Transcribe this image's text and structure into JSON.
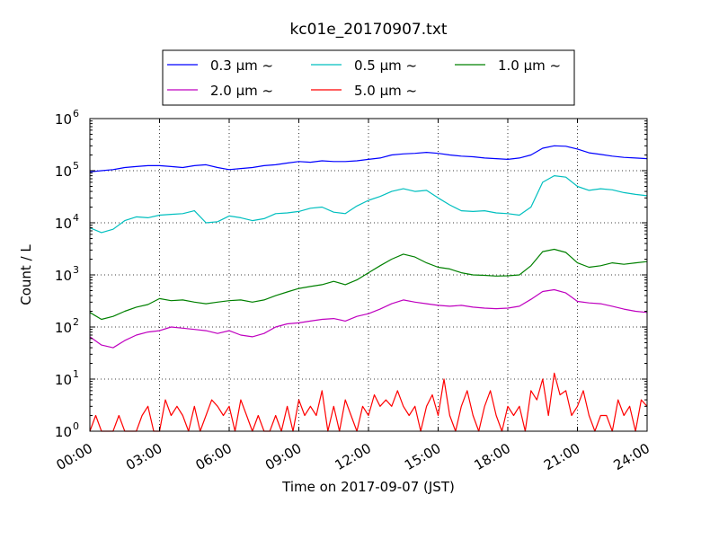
{
  "chart_data": {
    "type": "line",
    "title": "kc01e_20170907.txt",
    "xlabel": "Time on 2017-09-07 (JST)",
    "ylabel": "Count / L",
    "yscale": "log",
    "ylim": [
      1,
      1000000
    ],
    "xlim_hours": [
      0,
      24
    ],
    "grid": true,
    "legend_placement": "top-center",
    "x_tick_labels": [
      "00:00",
      "03:00",
      "06:00",
      "09:00",
      "12:00",
      "15:00",
      "18:00",
      "21:00",
      "24:00"
    ],
    "y_tick_base": "10",
    "y_tick_exponents": [
      "0",
      "1",
      "2",
      "3",
      "4",
      "5",
      "6"
    ],
    "series": [
      {
        "name": "0.3 μm ~",
        "color": "#0000ff",
        "points": [
          [
            0,
            95000
          ],
          [
            0.5,
            100000
          ],
          [
            1,
            105000
          ],
          [
            1.5,
            115000
          ],
          [
            2,
            120000
          ],
          [
            2.5,
            125000
          ],
          [
            3,
            125000
          ],
          [
            3.5,
            120000
          ],
          [
            4,
            115000
          ],
          [
            4.5,
            125000
          ],
          [
            5,
            130000
          ],
          [
            5.5,
            115000
          ],
          [
            6,
            105000
          ],
          [
            6.5,
            110000
          ],
          [
            7,
            115000
          ],
          [
            7.5,
            125000
          ],
          [
            8,
            130000
          ],
          [
            8.5,
            140000
          ],
          [
            9,
            150000
          ],
          [
            9.5,
            145000
          ],
          [
            10,
            155000
          ],
          [
            10.5,
            150000
          ],
          [
            11,
            150000
          ],
          [
            11.5,
            155000
          ],
          [
            12,
            165000
          ],
          [
            12.5,
            175000
          ],
          [
            13,
            200000
          ],
          [
            13.5,
            210000
          ],
          [
            14,
            215000
          ],
          [
            14.5,
            225000
          ],
          [
            15,
            215000
          ],
          [
            15.5,
            200000
          ],
          [
            16,
            190000
          ],
          [
            16.5,
            185000
          ],
          [
            17,
            175000
          ],
          [
            17.5,
            170000
          ],
          [
            18,
            165000
          ],
          [
            18.5,
            175000
          ],
          [
            19,
            200000
          ],
          [
            19.5,
            270000
          ],
          [
            20,
            300000
          ],
          [
            20.5,
            295000
          ],
          [
            21,
            260000
          ],
          [
            21.5,
            220000
          ],
          [
            22,
            205000
          ],
          [
            22.5,
            190000
          ],
          [
            23,
            180000
          ],
          [
            23.5,
            175000
          ],
          [
            24,
            170000
          ]
        ]
      },
      {
        "name": "0.5 μm ~",
        "color": "#00bfbf",
        "points": [
          [
            0,
            8000
          ],
          [
            0.5,
            6500
          ],
          [
            1,
            7500
          ],
          [
            1.5,
            11000
          ],
          [
            2,
            13000
          ],
          [
            2.5,
            12500
          ],
          [
            3,
            14000
          ],
          [
            3.5,
            14500
          ],
          [
            4,
            15000
          ],
          [
            4.5,
            17000
          ],
          [
            5,
            10000
          ],
          [
            5.5,
            10500
          ],
          [
            6,
            13500
          ],
          [
            6.5,
            12500
          ],
          [
            7,
            11000
          ],
          [
            7.5,
            12000
          ],
          [
            8,
            15000
          ],
          [
            8.5,
            15500
          ],
          [
            9,
            16500
          ],
          [
            9.5,
            19000
          ],
          [
            10,
            20000
          ],
          [
            10.5,
            16000
          ],
          [
            11,
            15000
          ],
          [
            11.5,
            21000
          ],
          [
            12,
            27000
          ],
          [
            12.5,
            32000
          ],
          [
            13,
            40000
          ],
          [
            13.5,
            45000
          ],
          [
            14,
            40000
          ],
          [
            14.5,
            42000
          ],
          [
            15,
            30000
          ],
          [
            15.5,
            22000
          ],
          [
            16,
            17000
          ],
          [
            16.5,
            16500
          ],
          [
            17,
            17000
          ],
          [
            17.5,
            15500
          ],
          [
            18,
            15000
          ],
          [
            18.5,
            14000
          ],
          [
            19,
            20000
          ],
          [
            19.5,
            60000
          ],
          [
            20,
            80000
          ],
          [
            20.5,
            75000
          ],
          [
            21,
            50000
          ],
          [
            21.5,
            42000
          ],
          [
            22,
            45000
          ],
          [
            22.5,
            43000
          ],
          [
            23,
            38000
          ],
          [
            23.5,
            35000
          ],
          [
            24,
            33000
          ]
        ]
      },
      {
        "name": "1.0 μm ~",
        "color": "#008000",
        "points": [
          [
            0,
            190
          ],
          [
            0.5,
            140
          ],
          [
            1,
            160
          ],
          [
            1.5,
            200
          ],
          [
            2,
            240
          ],
          [
            2.5,
            270
          ],
          [
            3,
            350
          ],
          [
            3.5,
            320
          ],
          [
            4,
            330
          ],
          [
            4.5,
            300
          ],
          [
            5,
            280
          ],
          [
            5.5,
            300
          ],
          [
            6,
            320
          ],
          [
            6.5,
            330
          ],
          [
            7,
            300
          ],
          [
            7.5,
            330
          ],
          [
            8,
            400
          ],
          [
            8.5,
            470
          ],
          [
            9,
            550
          ],
          [
            9.5,
            600
          ],
          [
            10,
            650
          ],
          [
            10.5,
            750
          ],
          [
            11,
            650
          ],
          [
            11.5,
            800
          ],
          [
            12,
            1100
          ],
          [
            12.5,
            1500
          ],
          [
            13,
            2000
          ],
          [
            13.5,
            2500
          ],
          [
            14,
            2200
          ],
          [
            14.5,
            1700
          ],
          [
            15,
            1400
          ],
          [
            15.5,
            1300
          ],
          [
            16,
            1100
          ],
          [
            16.5,
            1000
          ],
          [
            17,
            980
          ],
          [
            17.5,
            950
          ],
          [
            18,
            960
          ],
          [
            18.5,
            1000
          ],
          [
            19,
            1500
          ],
          [
            19.5,
            2800
          ],
          [
            20,
            3100
          ],
          [
            20.5,
            2700
          ],
          [
            21,
            1700
          ],
          [
            21.5,
            1400
          ],
          [
            22,
            1500
          ],
          [
            22.5,
            1700
          ],
          [
            23,
            1600
          ],
          [
            23.5,
            1700
          ],
          [
            24,
            1800
          ]
        ]
      },
      {
        "name": "2.0 μm ~",
        "color": "#bf00bf",
        "points": [
          [
            0,
            65
          ],
          [
            0.5,
            45
          ],
          [
            1,
            40
          ],
          [
            1.5,
            55
          ],
          [
            2,
            70
          ],
          [
            2.5,
            80
          ],
          [
            3,
            85
          ],
          [
            3.5,
            100
          ],
          [
            4,
            95
          ],
          [
            4.5,
            90
          ],
          [
            5,
            85
          ],
          [
            5.5,
            75
          ],
          [
            6,
            85
          ],
          [
            6.5,
            70
          ],
          [
            7,
            65
          ],
          [
            7.5,
            75
          ],
          [
            8,
            100
          ],
          [
            8.5,
            115
          ],
          [
            9,
            120
          ],
          [
            9.5,
            130
          ],
          [
            10,
            140
          ],
          [
            10.5,
            145
          ],
          [
            11,
            130
          ],
          [
            11.5,
            160
          ],
          [
            12,
            180
          ],
          [
            12.5,
            220
          ],
          [
            13,
            280
          ],
          [
            13.5,
            330
          ],
          [
            14,
            300
          ],
          [
            14.5,
            280
          ],
          [
            15,
            260
          ],
          [
            15.5,
            250
          ],
          [
            16,
            260
          ],
          [
            16.5,
            240
          ],
          [
            17,
            230
          ],
          [
            17.5,
            225
          ],
          [
            18,
            230
          ],
          [
            18.5,
            250
          ],
          [
            19,
            340
          ],
          [
            19.5,
            480
          ],
          [
            20,
            520
          ],
          [
            20.5,
            450
          ],
          [
            21,
            310
          ],
          [
            21.5,
            290
          ],
          [
            22,
            280
          ],
          [
            22.5,
            250
          ],
          [
            23,
            220
          ],
          [
            23.5,
            200
          ],
          [
            24,
            190
          ]
        ]
      },
      {
        "name": "5.0 μm ~",
        "color": "#ff0000",
        "points": [
          [
            0,
            1
          ],
          [
            0.25,
            2
          ],
          [
            0.5,
            1
          ],
          [
            1,
            1
          ],
          [
            1.25,
            2
          ],
          [
            1.5,
            1
          ],
          [
            2,
            1
          ],
          [
            2.25,
            2
          ],
          [
            2.5,
            3
          ],
          [
            2.75,
            1
          ],
          [
            3,
            1
          ],
          [
            3.25,
            4
          ],
          [
            3.5,
            2
          ],
          [
            3.75,
            3
          ],
          [
            4,
            2
          ],
          [
            4.25,
            1
          ],
          [
            4.5,
            3
          ],
          [
            4.75,
            1
          ],
          [
            5,
            2
          ],
          [
            5.25,
            4
          ],
          [
            5.5,
            3
          ],
          [
            5.75,
            2
          ],
          [
            6,
            3
          ],
          [
            6.25,
            1
          ],
          [
            6.5,
            4
          ],
          [
            6.75,
            2
          ],
          [
            7,
            1
          ],
          [
            7.25,
            2
          ],
          [
            7.5,
            1
          ],
          [
            7.75,
            1
          ],
          [
            8,
            2
          ],
          [
            8.25,
            1
          ],
          [
            8.5,
            3
          ],
          [
            8.75,
            1
          ],
          [
            9,
            4
          ],
          [
            9.25,
            2
          ],
          [
            9.5,
            3
          ],
          [
            9.75,
            2
          ],
          [
            10,
            6
          ],
          [
            10.25,
            1
          ],
          [
            10.5,
            3
          ],
          [
            10.75,
            1
          ],
          [
            11,
            4
          ],
          [
            11.25,
            2
          ],
          [
            11.5,
            1
          ],
          [
            11.75,
            3
          ],
          [
            12,
            2
          ],
          [
            12.25,
            5
          ],
          [
            12.5,
            3
          ],
          [
            12.75,
            4
          ],
          [
            13,
            3
          ],
          [
            13.25,
            6
          ],
          [
            13.5,
            3
          ],
          [
            13.75,
            2
          ],
          [
            14,
            3
          ],
          [
            14.25,
            1
          ],
          [
            14.5,
            3
          ],
          [
            14.75,
            5
          ],
          [
            15,
            2
          ],
          [
            15.25,
            10
          ],
          [
            15.5,
            2
          ],
          [
            15.75,
            1
          ],
          [
            16,
            3
          ],
          [
            16.25,
            6
          ],
          [
            16.5,
            2
          ],
          [
            16.75,
            1
          ],
          [
            17,
            3
          ],
          [
            17.25,
            6
          ],
          [
            17.5,
            2
          ],
          [
            17.75,
            1
          ],
          [
            18,
            3
          ],
          [
            18.25,
            2
          ],
          [
            18.5,
            3
          ],
          [
            18.75,
            1
          ],
          [
            19,
            6
          ],
          [
            19.25,
            4
          ],
          [
            19.5,
            10
          ],
          [
            19.75,
            2
          ],
          [
            20,
            13
          ],
          [
            20.25,
            5
          ],
          [
            20.5,
            6
          ],
          [
            20.75,
            2
          ],
          [
            21,
            3
          ],
          [
            21.25,
            6
          ],
          [
            21.5,
            2
          ],
          [
            21.75,
            1
          ],
          [
            22,
            2
          ],
          [
            22.25,
            2
          ],
          [
            22.5,
            1
          ],
          [
            22.75,
            4
          ],
          [
            23,
            2
          ],
          [
            23.25,
            3
          ],
          [
            23.5,
            1
          ],
          [
            23.75,
            4
          ],
          [
            24,
            3
          ]
        ]
      }
    ]
  }
}
